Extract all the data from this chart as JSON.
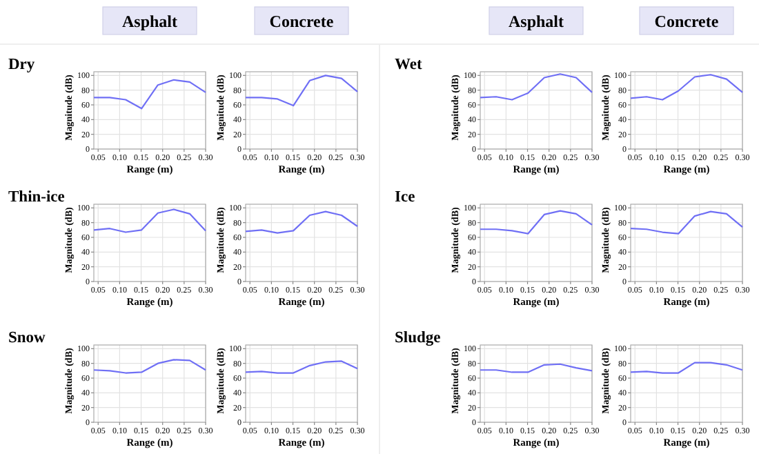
{
  "chart_data": [
    {
      "type": "line",
      "title": "Asphalt",
      "annotations": [
        "Dry"
      ],
      "xlabel": "Range (m)",
      "ylabel": "Magnitude (dB)",
      "x": [
        0.04,
        0.077,
        0.114,
        0.151,
        0.189,
        0.226,
        0.263,
        0.3
      ],
      "series": [
        {
          "color": "#6f6ff5",
          "values": [
            70,
            70,
            67,
            55,
            87,
            94,
            91,
            77
          ]
        }
      ],
      "xlim": [
        0.04,
        0.3
      ],
      "ylim": [
        0,
        105
      ],
      "xticks": [
        0.05,
        {
          "value": 0.1,
          "label": "0.10"
        },
        0.15,
        {
          "value": 0.2,
          "label": "0.20"
        },
        0.25,
        {
          "value": 0.3,
          "label": "0.30"
        }
      ],
      "yticks": [
        0,
        20,
        40,
        60,
        80,
        100
      ],
      "grid": true
    },
    {
      "type": "line",
      "title": "Concrete",
      "xlabel": "Range (m)",
      "ylabel": "Magnitude (dB)",
      "x": [
        0.04,
        0.077,
        0.114,
        0.151,
        0.189,
        0.226,
        0.263,
        0.3
      ],
      "series": [
        {
          "color": "#6f6ff5",
          "values": [
            70,
            70,
            68,
            59,
            93,
            100,
            96,
            78
          ]
        }
      ],
      "xlim": [
        0.04,
        0.3
      ],
      "ylim": [
        0,
        105
      ],
      "xticks": [
        0.05,
        {
          "value": 0.1,
          "label": "0.10"
        },
        0.15,
        {
          "value": 0.2,
          "label": "0.20"
        },
        0.25,
        {
          "value": 0.3,
          "label": "0.30"
        }
      ],
      "yticks": [
        0,
        20,
        40,
        60,
        80,
        100
      ],
      "grid": true
    },
    {
      "type": "line",
      "title": "Asphalt",
      "annotations": [
        "Wet"
      ],
      "xlabel": "Range (m)",
      "ylabel": "Magnitude (dB)",
      "x": [
        0.04,
        0.077,
        0.114,
        0.151,
        0.189,
        0.226,
        0.263,
        0.3
      ],
      "series": [
        {
          "color": "#6f6ff5",
          "values": [
            70,
            71,
            67,
            76,
            97,
            102,
            97,
            77
          ]
        }
      ],
      "xlim": [
        0.04,
        0.3
      ],
      "ylim": [
        0,
        105
      ],
      "xticks": [
        0.05,
        {
          "value": 0.1,
          "label": "0.10"
        },
        0.15,
        {
          "value": 0.2,
          "label": "0.20"
        },
        0.25,
        {
          "value": 0.3,
          "label": "0.30"
        }
      ],
      "yticks": [
        0,
        20,
        40,
        60,
        80,
        100
      ],
      "grid": true
    },
    {
      "type": "line",
      "title": "Concrete",
      "xlabel": "Range (m)",
      "ylabel": "Magnitude (dB)",
      "x": [
        0.04,
        0.077,
        0.114,
        0.151,
        0.189,
        0.226,
        0.263,
        0.3
      ],
      "series": [
        {
          "color": "#6f6ff5",
          "values": [
            69,
            71,
            67,
            79,
            98,
            101,
            95,
            77
          ]
        }
      ],
      "xlim": [
        0.04,
        0.3
      ],
      "ylim": [
        0,
        105
      ],
      "xticks": [
        0.05,
        {
          "value": 0.1,
          "label": "0.10"
        },
        0.15,
        {
          "value": 0.2,
          "label": "0.20"
        },
        0.25,
        {
          "value": 0.3,
          "label": "0.30"
        }
      ],
      "yticks": [
        0,
        20,
        40,
        60,
        80,
        100
      ],
      "grid": true
    },
    {
      "type": "line",
      "annotations": [
        "Thin-ice"
      ],
      "xlabel": "Range (m)",
      "ylabel": "Magnitude (dB)",
      "x": [
        0.04,
        0.077,
        0.114,
        0.151,
        0.189,
        0.226,
        0.263,
        0.3
      ],
      "series": [
        {
          "color": "#6f6ff5",
          "values": [
            70,
            72,
            67,
            70,
            93,
            98,
            92,
            69
          ]
        }
      ],
      "xlim": [
        0.04,
        0.3
      ],
      "ylim": [
        0,
        105
      ],
      "xticks": [
        0.05,
        {
          "value": 0.1,
          "label": "0.10"
        },
        0.15,
        {
          "value": 0.2,
          "label": "0.20"
        },
        0.25,
        {
          "value": 0.3,
          "label": "0.30"
        }
      ],
      "yticks": [
        0,
        20,
        40,
        60,
        80,
        100
      ],
      "grid": true
    },
    {
      "type": "line",
      "xlabel": "Range (m)",
      "ylabel": "Magnitude (dB)",
      "x": [
        0.04,
        0.077,
        0.114,
        0.151,
        0.189,
        0.226,
        0.263,
        0.3
      ],
      "series": [
        {
          "color": "#6f6ff5",
          "values": [
            68,
            70,
            66,
            69,
            90,
            95,
            90,
            75
          ]
        }
      ],
      "xlim": [
        0.04,
        0.3
      ],
      "ylim": [
        0,
        105
      ],
      "xticks": [
        0.05,
        {
          "value": 0.1,
          "label": "0.10"
        },
        0.15,
        {
          "value": 0.2,
          "label": "0.20"
        },
        0.25,
        {
          "value": 0.3,
          "label": "0.30"
        }
      ],
      "yticks": [
        0,
        20,
        40,
        60,
        80,
        100
      ],
      "grid": true
    },
    {
      "type": "line",
      "annotations": [
        "Ice"
      ],
      "xlabel": "Range (m)",
      "ylabel": "Magnitude (dB)",
      "x": [
        0.04,
        0.077,
        0.114,
        0.151,
        0.189,
        0.226,
        0.263,
        0.3
      ],
      "series": [
        {
          "color": "#6f6ff5",
          "values": [
            71,
            71,
            69,
            65,
            91,
            96,
            92,
            77
          ]
        }
      ],
      "xlim": [
        0.04,
        0.3
      ],
      "ylim": [
        0,
        105
      ],
      "xticks": [
        0.05,
        {
          "value": 0.1,
          "label": "0.10"
        },
        0.15,
        {
          "value": 0.2,
          "label": "0.20"
        },
        0.25,
        {
          "value": 0.3,
          "label": "0.30"
        }
      ],
      "yticks": [
        0,
        20,
        40,
        60,
        80,
        100
      ],
      "grid": true
    },
    {
      "type": "line",
      "xlabel": "Range (m)",
      "ylabel": "Magnitude (dB)",
      "x": [
        0.04,
        0.077,
        0.114,
        0.151,
        0.189,
        0.226,
        0.263,
        0.3
      ],
      "series": [
        {
          "color": "#6f6ff5",
          "values": [
            72,
            71,
            67,
            65,
            89,
            95,
            92,
            74
          ]
        }
      ],
      "xlim": [
        0.04,
        0.3
      ],
      "ylim": [
        0,
        105
      ],
      "xticks": [
        0.05,
        {
          "value": 0.1,
          "label": "0.10"
        },
        0.15,
        {
          "value": 0.2,
          "label": "0.20"
        },
        0.25,
        {
          "value": 0.3,
          "label": "0.30"
        }
      ],
      "yticks": [
        0,
        20,
        40,
        60,
        80,
        100
      ],
      "grid": true
    },
    {
      "type": "line",
      "annotations": [
        "Snow"
      ],
      "xlabel": "Range (m)",
      "ylabel": "Magnitude (dB)",
      "x": [
        0.04,
        0.077,
        0.114,
        0.151,
        0.189,
        0.226,
        0.263,
        0.3
      ],
      "series": [
        {
          "color": "#6f6ff5",
          "values": [
            71,
            70,
            67,
            68,
            80,
            85,
            84,
            71
          ]
        }
      ],
      "xlim": [
        0.04,
        0.3
      ],
      "ylim": [
        0,
        105
      ],
      "xticks": [
        0.05,
        {
          "value": 0.1,
          "label": "0.10"
        },
        0.15,
        {
          "value": 0.2,
          "label": "0.20"
        },
        0.25,
        {
          "value": 0.3,
          "label": "0.30"
        }
      ],
      "yticks": [
        0,
        20,
        40,
        60,
        80,
        100
      ],
      "grid": true
    },
    {
      "type": "line",
      "xlabel": "Range (m)",
      "ylabel": "Magnitude (dB)",
      "x": [
        0.04,
        0.077,
        0.114,
        0.151,
        0.189,
        0.226,
        0.263,
        0.3
      ],
      "series": [
        {
          "color": "#6f6ff5",
          "values": [
            68,
            69,
            67,
            67,
            77,
            82,
            83,
            73
          ]
        }
      ],
      "xlim": [
        0.04,
        0.3
      ],
      "ylim": [
        0,
        105
      ],
      "xticks": [
        0.05,
        {
          "value": 0.1,
          "label": "0.10"
        },
        0.15,
        {
          "value": 0.2,
          "label": "0.20"
        },
        0.25,
        {
          "value": 0.3,
          "label": "0.30"
        }
      ],
      "yticks": [
        0,
        20,
        40,
        60,
        80,
        100
      ],
      "grid": true
    },
    {
      "type": "line",
      "annotations": [
        "Sludge"
      ],
      "xlabel": "Range (m)",
      "ylabel": "Magnitude (dB)",
      "x": [
        0.04,
        0.077,
        0.114,
        0.151,
        0.189,
        0.226,
        0.263,
        0.3
      ],
      "series": [
        {
          "color": "#6f6ff5",
          "values": [
            71,
            71,
            68,
            68,
            78,
            79,
            74,
            70
          ]
        }
      ],
      "xlim": [
        0.04,
        0.3
      ],
      "ylim": [
        0,
        105
      ],
      "xticks": [
        0.05,
        {
          "value": 0.1,
          "label": "0.10"
        },
        0.15,
        {
          "value": 0.2,
          "label": "0.20"
        },
        0.25,
        {
          "value": 0.3,
          "label": "0.30"
        }
      ],
      "yticks": [
        0,
        20,
        40,
        60,
        80,
        100
      ],
      "grid": true
    },
    {
      "type": "line",
      "xlabel": "Range (m)",
      "ylabel": "Magnitude (dB)",
      "x": [
        0.04,
        0.077,
        0.114,
        0.151,
        0.189,
        0.226,
        0.263,
        0.3
      ],
      "series": [
        {
          "color": "#6f6ff5",
          "values": [
            68,
            69,
            67,
            67,
            81,
            81,
            78,
            71
          ]
        }
      ],
      "xlim": [
        0.04,
        0.3
      ],
      "ylim": [
        0,
        105
      ],
      "xticks": [
        0.05,
        {
          "value": 0.1,
          "label": "0.10"
        },
        0.15,
        {
          "value": 0.2,
          "label": "0.20"
        },
        0.25,
        {
          "value": 0.3,
          "label": "0.30"
        }
      ],
      "yticks": [
        0,
        20,
        40,
        60,
        80,
        100
      ],
      "grid": true
    }
  ]
}
